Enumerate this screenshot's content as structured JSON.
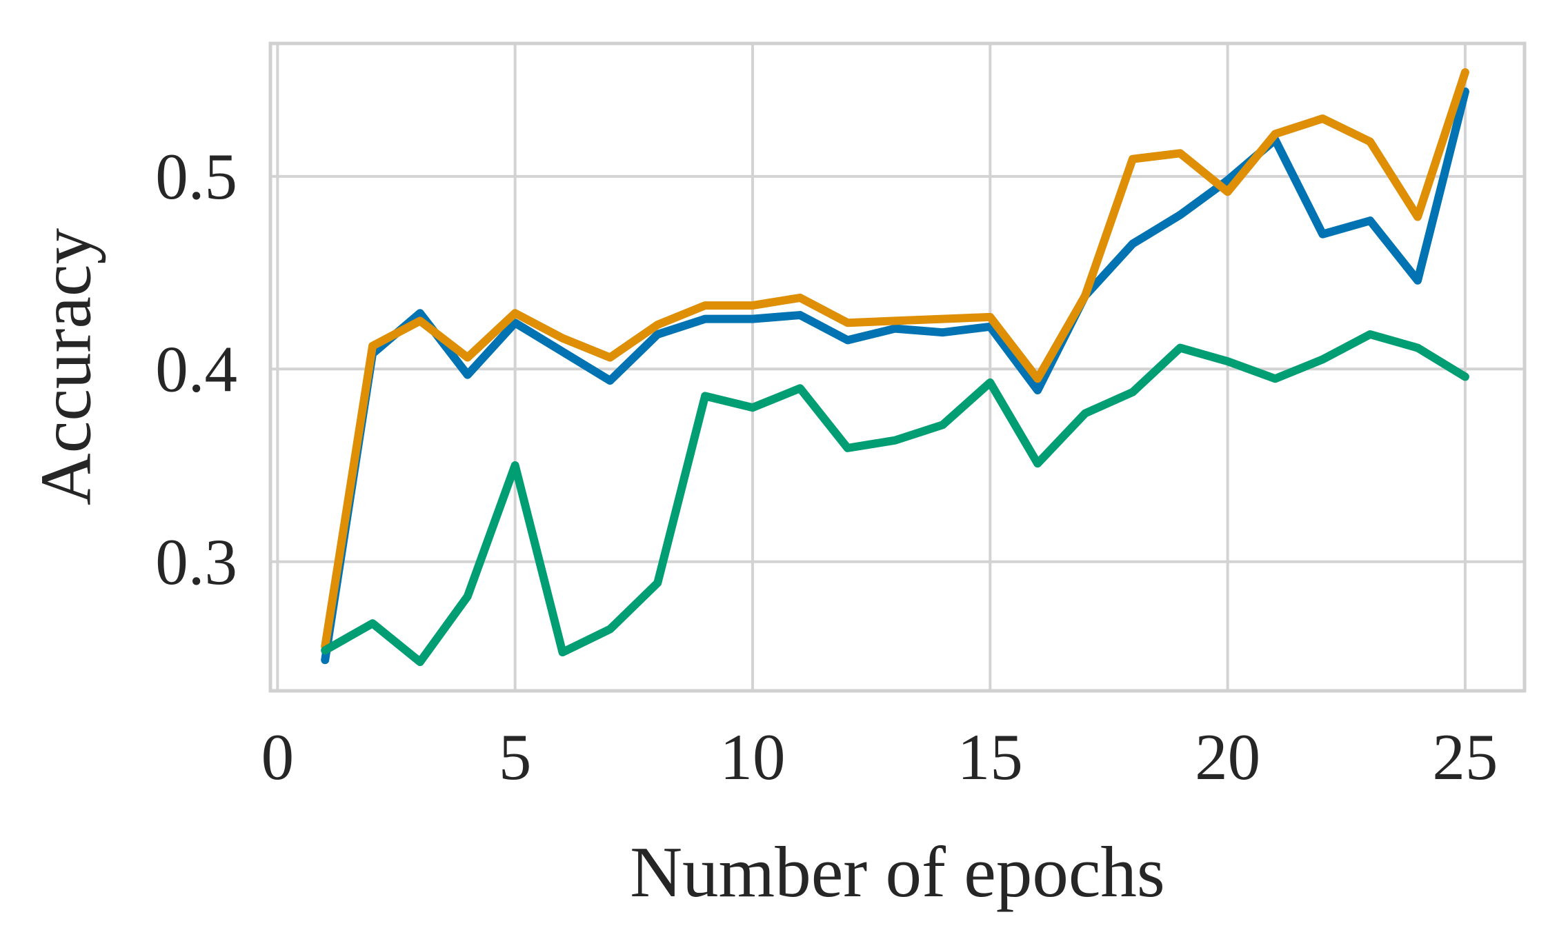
{
  "chart_data": {
    "type": "line",
    "title": "",
    "xlabel": "Number of epochs",
    "ylabel": "Accuracy",
    "x": [
      1,
      2,
      3,
      4,
      5,
      6,
      7,
      8,
      9,
      10,
      11,
      12,
      13,
      14,
      15,
      16,
      17,
      18,
      19,
      20,
      21,
      22,
      23,
      24,
      25
    ],
    "series": [
      {
        "id": "series-blue",
        "color": "#0173b2",
        "values": [
          0.249,
          0.408,
          0.429,
          0.397,
          0.424,
          0.409,
          0.394,
          0.418,
          0.426,
          0.426,
          0.428,
          0.415,
          0.421,
          0.419,
          0.422,
          0.389,
          0.438,
          0.465,
          0.48,
          0.498,
          0.519,
          0.47,
          0.477,
          0.446,
          0.544
        ]
      },
      {
        "id": "series-orange",
        "color": "#de8f05",
        "values": [
          0.256,
          0.412,
          0.425,
          0.406,
          0.429,
          0.416,
          0.406,
          0.423,
          0.433,
          0.433,
          0.437,
          0.424,
          0.425,
          0.426,
          0.427,
          0.395,
          0.438,
          0.509,
          0.512,
          0.492,
          0.522,
          0.53,
          0.518,
          0.479,
          0.554
        ]
      },
      {
        "id": "series-green",
        "color": "#029e73",
        "values": [
          0.254,
          0.268,
          0.248,
          0.282,
          0.35,
          0.253,
          0.265,
          0.289,
          0.386,
          0.38,
          0.39,
          0.359,
          0.363,
          0.371,
          0.393,
          0.351,
          0.377,
          0.388,
          0.411,
          0.404,
          0.395,
          0.405,
          0.418,
          0.411,
          0.396
        ]
      }
    ],
    "xticks": [
      0,
      5,
      10,
      15,
      20,
      25
    ],
    "yticks": [
      0.3,
      0.4,
      0.5
    ],
    "xtick_labels": [
      "0",
      "5",
      "10",
      "15",
      "20",
      "25"
    ],
    "ytick_labels": [
      "0.3",
      "0.4",
      "0.5"
    ],
    "xlim": [
      -0.15,
      26.25
    ],
    "ylim": [
      0.233,
      0.569
    ],
    "grid": true,
    "legend": "none",
    "grid_color": "#d3d3d3",
    "spine_color": "#d0d0d0",
    "text_color": "#262626",
    "line_width": 12
  }
}
